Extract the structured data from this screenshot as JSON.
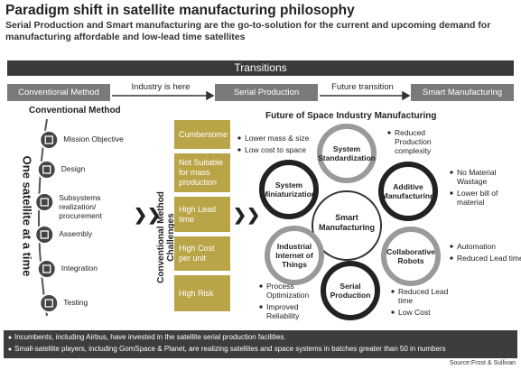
{
  "header": {
    "title": "Paradigm shift in satellite manufacturing philosophy",
    "subtitle": "Serial Production and Smart manufacturing are the go-to-solution for the current and upcoming demand for manufacturing affordable and low-lead time satellites"
  },
  "transitions": {
    "title": "Transitions",
    "stages": [
      "Conventional Method",
      "Serial Production",
      "Smart Manufacturing"
    ],
    "arrows": [
      "Industry is here",
      "Future transition"
    ]
  },
  "conventional": {
    "title": "Conventional Method",
    "vertical_label": "One satellite at a time",
    "steps": [
      "Mission Objective",
      "Design",
      "Subsystems realization/ procurement",
      "Assembly",
      "Integration",
      "Testing"
    ]
  },
  "challenges": {
    "title": "Conventional Method Challenges",
    "items": [
      "Cumbersome",
      "Not Suitable for mass production",
      "High Lead time",
      "High Cost per unit",
      "High Risk"
    ]
  },
  "future": {
    "title": "Future of Space Industry Manufacturing",
    "center": "Smart Manufacturing",
    "nodes": [
      {
        "label": "System Standardization",
        "benefits": [
          "Reduced Production complexity"
        ]
      },
      {
        "label": "Additive Manufacturing",
        "benefits": [
          "No Material Wastage",
          "Lower bill of material"
        ]
      },
      {
        "label": "Collaborative Robots",
        "benefits": [
          "Automation",
          "Reduced Lead time"
        ]
      },
      {
        "label": "Serial Production",
        "benefits": [
          "Reduced Lead time",
          "Low Cost"
        ]
      },
      {
        "label": "Industrial Internet of Things",
        "benefits": [
          "Process Optimization",
          "Improved Reliability"
        ]
      },
      {
        "label": "System Miniaturization",
        "benefits": [
          "Lower mass & size",
          "Low cost to space"
        ]
      }
    ]
  },
  "notes": [
    "Incumbents, including Airbus, have invested in the satellite serial production facilities.",
    "Small-satellite players, including GomSpace & Planet, are realizing satellites and space systems in batches greater than 50 in numbers"
  ],
  "source": "Source:Frost & Sullivan"
}
